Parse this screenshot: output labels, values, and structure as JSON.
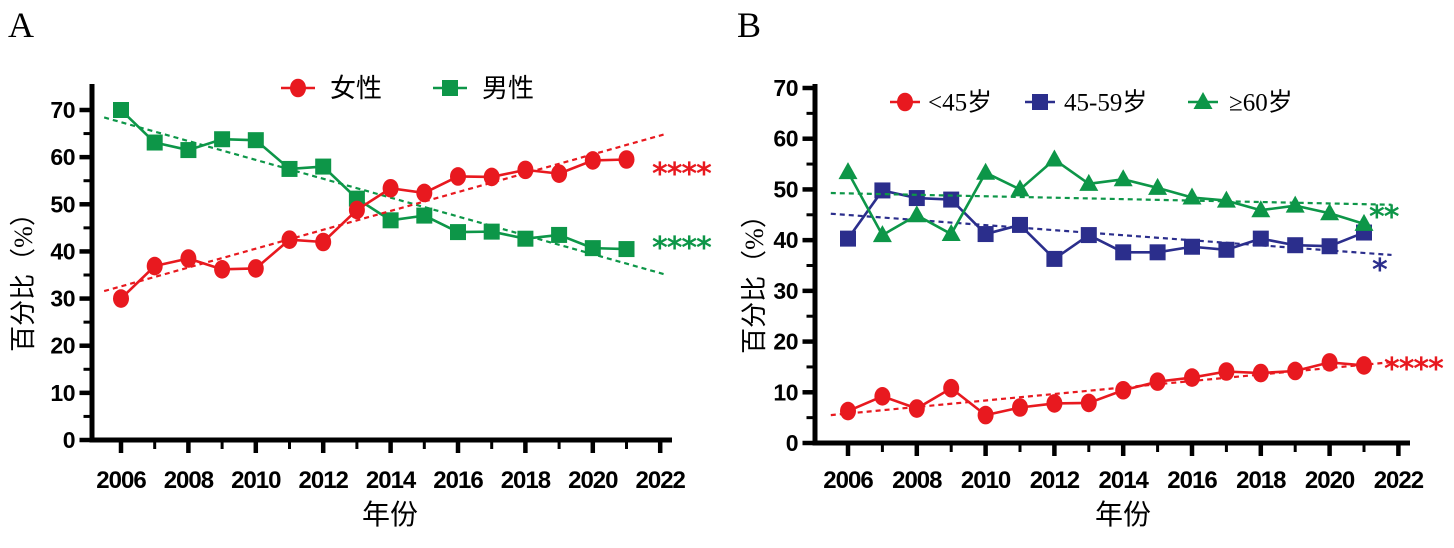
{
  "figure": {
    "background": "#ffffff",
    "axis_color": "#000000"
  },
  "chart_data": [
    {
      "panel": "A",
      "type": "line",
      "title": "",
      "xlabel": "年份",
      "ylabel": "百分比（%）",
      "x": [
        2006,
        2007,
        2008,
        2009,
        2010,
        2011,
        2012,
        2013,
        2014,
        2015,
        2016,
        2017,
        2018,
        2019,
        2020,
        2021
      ],
      "xticks": [
        2006,
        2008,
        2010,
        2012,
        2014,
        2016,
        2018,
        2020,
        2022
      ],
      "yticks": [
        0,
        10,
        20,
        30,
        40,
        50,
        60,
        70
      ],
      "ylim": [
        0,
        70
      ],
      "grid": false,
      "legend_position": "top-center-inside",
      "series": [
        {
          "name": "女性",
          "color": "#e8191f",
          "marker": "circle",
          "trendline": true,
          "significance": "****",
          "values": [
            30.0,
            36.9,
            38.5,
            36.2,
            36.4,
            42.5,
            42.0,
            48.8,
            53.4,
            52.4,
            55.9,
            55.8,
            57.3,
            56.5,
            59.3,
            59.5
          ]
        },
        {
          "name": "男性",
          "color": "#0d9648",
          "marker": "square",
          "trendline": true,
          "significance": "****",
          "values": [
            70.0,
            63.1,
            61.5,
            63.8,
            63.6,
            57.5,
            58.0,
            51.2,
            46.6,
            47.6,
            44.1,
            44.2,
            42.7,
            43.5,
            40.7,
            40.5
          ]
        }
      ]
    },
    {
      "panel": "B",
      "type": "line",
      "title": "",
      "xlabel": "年份",
      "ylabel": "百分比（%）",
      "x": [
        2006,
        2007,
        2008,
        2009,
        2010,
        2011,
        2012,
        2013,
        2014,
        2015,
        2016,
        2017,
        2018,
        2019,
        2020,
        2021
      ],
      "xticks": [
        2006,
        2008,
        2010,
        2012,
        2014,
        2016,
        2018,
        2020,
        2022
      ],
      "yticks": [
        0,
        10,
        20,
        30,
        40,
        50,
        60,
        70
      ],
      "ylim": [
        0,
        70
      ],
      "grid": false,
      "legend_position": "top-center-inside",
      "series": [
        {
          "name": "<45岁",
          "color": "#e8191f",
          "marker": "circle",
          "trendline": true,
          "significance": "****",
          "values": [
            6.3,
            9.2,
            6.8,
            10.8,
            5.5,
            7.0,
            7.8,
            7.9,
            10.4,
            12.1,
            12.9,
            14.1,
            13.8,
            14.2,
            15.9,
            15.3
          ]
        },
        {
          "name": "45-59岁",
          "color": "#2b2e8c",
          "marker": "square",
          "trendline": true,
          "significance": "*",
          "values": [
            40.3,
            49.8,
            48.3,
            48.0,
            41.2,
            43.0,
            36.3,
            41.0,
            37.6,
            37.6,
            38.7,
            38.1,
            40.3,
            39.0,
            38.8,
            41.5
          ]
        },
        {
          "name": "≥60岁",
          "color": "#0d9648",
          "marker": "triangle",
          "trendline": true,
          "significance": "**",
          "values": [
            53.4,
            41.0,
            44.9,
            41.2,
            53.3,
            50.0,
            55.9,
            51.1,
            52.0,
            50.3,
            48.4,
            47.8,
            45.9,
            46.8,
            45.3,
            43.2
          ]
        }
      ]
    }
  ]
}
